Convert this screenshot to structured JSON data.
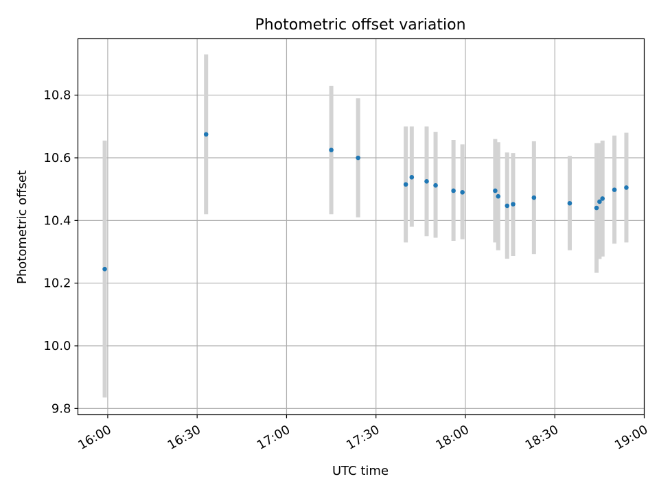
{
  "chart_data": {
    "type": "scatter",
    "title": "Photometric offset variation",
    "xlabel": "UTC time",
    "ylabel": "Photometric offset",
    "xlim": [
      "15:50",
      "19:00"
    ],
    "ylim": [
      9.78,
      10.98
    ],
    "x_ticks": [
      "16:00",
      "16:30",
      "17:00",
      "17:30",
      "18:00",
      "18:30",
      "19:00"
    ],
    "y_ticks": [
      "9.8",
      "10.0",
      "10.2",
      "10.4",
      "10.6",
      "10.8"
    ],
    "grid": true,
    "colors": {
      "point": "#1f77b4",
      "errorbar": "#d3d3d3",
      "grid": "#b0b0b0"
    },
    "points": [
      {
        "x": "15:59",
        "y": 10.245,
        "ymin": 9.835,
        "ymax": 10.655
      },
      {
        "x": "16:33",
        "y": 10.675,
        "ymin": 10.42,
        "ymax": 10.93
      },
      {
        "x": "17:15",
        "y": 10.625,
        "ymin": 10.42,
        "ymax": 10.83
      },
      {
        "x": "17:24",
        "y": 10.6,
        "ymin": 10.41,
        "ymax": 10.79
      },
      {
        "x": "17:40",
        "y": 10.515,
        "ymin": 10.33,
        "ymax": 10.7
      },
      {
        "x": "17:42",
        "y": 10.538,
        "ymin": 10.38,
        "ymax": 10.7
      },
      {
        "x": "17:47",
        "y": 10.525,
        "ymin": 10.35,
        "ymax": 10.7
      },
      {
        "x": "17:50",
        "y": 10.512,
        "ymin": 10.345,
        "ymax": 10.683
      },
      {
        "x": "17:56",
        "y": 10.495,
        "ymin": 10.335,
        "ymax": 10.657
      },
      {
        "x": "17:59",
        "y": 10.49,
        "ymin": 10.34,
        "ymax": 10.643
      },
      {
        "x": "18:10",
        "y": 10.495,
        "ymin": 10.33,
        "ymax": 10.66
      },
      {
        "x": "18:11",
        "y": 10.477,
        "ymin": 10.305,
        "ymax": 10.65
      },
      {
        "x": "18:14",
        "y": 10.447,
        "ymin": 10.278,
        "ymax": 10.617
      },
      {
        "x": "18:16",
        "y": 10.452,
        "ymin": 10.287,
        "ymax": 10.615
      },
      {
        "x": "18:23",
        "y": 10.473,
        "ymin": 10.293,
        "ymax": 10.653
      },
      {
        "x": "18:35",
        "y": 10.455,
        "ymin": 10.305,
        "ymax": 10.606
      },
      {
        "x": "18:44",
        "y": 10.44,
        "ymin": 10.233,
        "ymax": 10.647
      },
      {
        "x": "18:45",
        "y": 10.46,
        "ymin": 10.277,
        "ymax": 10.647
      },
      {
        "x": "18:46",
        "y": 10.47,
        "ymin": 10.285,
        "ymax": 10.655
      },
      {
        "x": "18:50",
        "y": 10.498,
        "ymin": 10.326,
        "ymax": 10.671
      },
      {
        "x": "18:54",
        "y": 10.505,
        "ymin": 10.33,
        "ymax": 10.68
      }
    ]
  }
}
